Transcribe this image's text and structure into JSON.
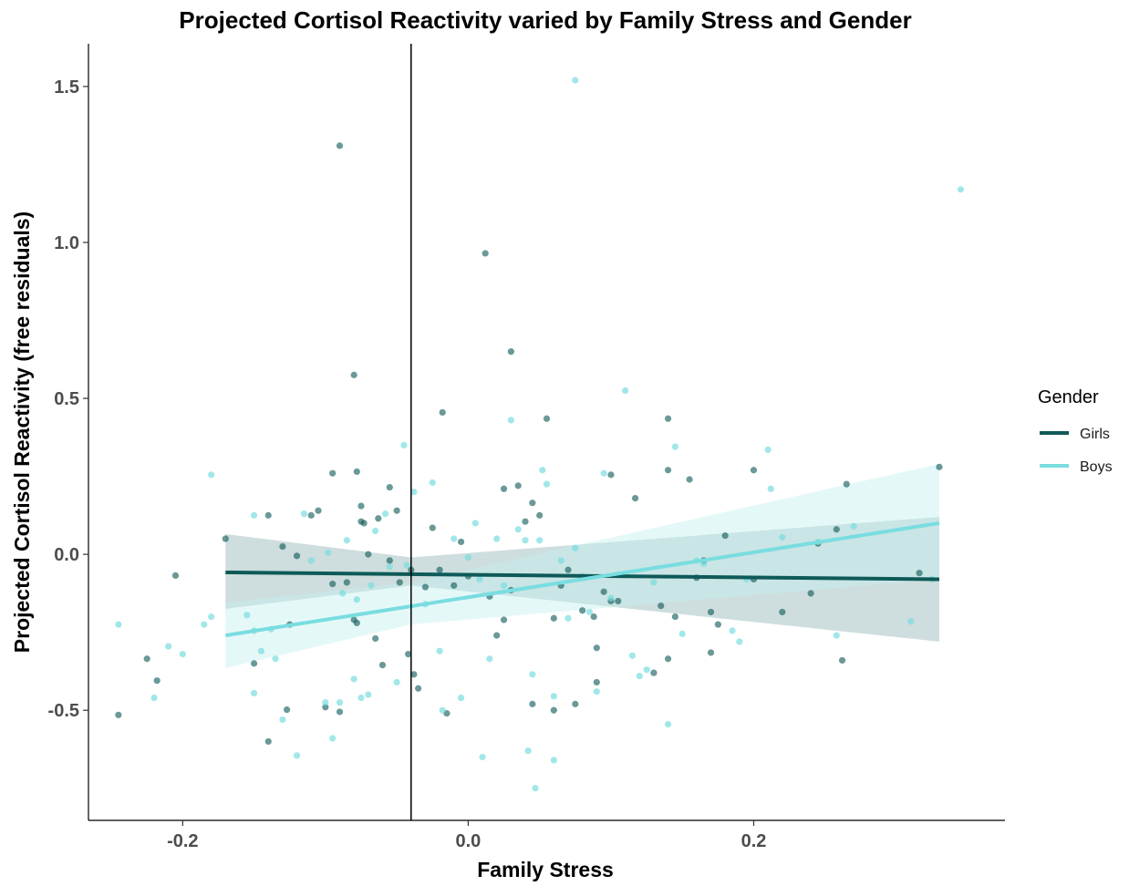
{
  "chart_data": {
    "type": "scatter",
    "title": "Projected Cortisol Reactivity varied by Family Stress and Gender",
    "xlabel": "Family Stress",
    "ylabel": "Projected Cortisol Reactivity (free residuals)",
    "xlim": [
      -0.266,
      0.376
    ],
    "ylim": [
      -0.853,
      1.637
    ],
    "x_ticks": [
      {
        "value": -0.2,
        "label": "-0.2"
      },
      {
        "value": 0.0,
        "label": "0.0"
      },
      {
        "value": 0.2,
        "label": "0.2"
      }
    ],
    "y_ticks": [
      {
        "value": -0.5,
        "label": "-0.5"
      },
      {
        "value": 0.0,
        "label": "0.0"
      },
      {
        "value": 0.5,
        "label": "0.5"
      },
      {
        "value": 1.0,
        "label": "1.0"
      },
      {
        "value": 1.5,
        "label": "1.5"
      }
    ],
    "grid": false,
    "vline_x": -0.04,
    "legend": {
      "title": "Gender",
      "position": "right"
    },
    "series": [
      {
        "name": "Girls",
        "color": "#0e5a58",
        "fit": {
          "x": [
            -0.17,
            0.33
          ],
          "y": [
            -0.058,
            -0.08
          ]
        },
        "band": {
          "x": [
            -0.17,
            -0.04,
            0.33
          ],
          "lower": [
            -0.175,
            -0.1,
            -0.28
          ],
          "upper": [
            0.065,
            -0.01,
            0.12
          ]
        },
        "points": [
          [
            -0.245,
            -0.515
          ],
          [
            -0.225,
            -0.335
          ],
          [
            -0.218,
            -0.405
          ],
          [
            -0.205,
            -0.068
          ],
          [
            -0.17,
            0.05
          ],
          [
            -0.15,
            -0.35
          ],
          [
            -0.14,
            0.125
          ],
          [
            -0.13,
            0.025
          ],
          [
            -0.125,
            -0.225
          ],
          [
            -0.127,
            -0.498
          ],
          [
            -0.12,
            -0.005
          ],
          [
            -0.14,
            -0.6
          ],
          [
            -0.11,
            0.125
          ],
          [
            -0.105,
            0.14
          ],
          [
            -0.1,
            -0.49
          ],
          [
            -0.095,
            0.26
          ],
          [
            -0.095,
            -0.095
          ],
          [
            -0.09,
            -0.505
          ],
          [
            -0.09,
            1.31
          ],
          [
            -0.085,
            -0.09
          ],
          [
            -0.08,
            0.575
          ],
          [
            -0.08,
            -0.21
          ],
          [
            -0.078,
            -0.22
          ],
          [
            -0.078,
            0.265
          ],
          [
            -0.075,
            0.155
          ],
          [
            -0.075,
            0.105
          ],
          [
            -0.073,
            0.1
          ],
          [
            -0.07,
            0.0
          ],
          [
            -0.065,
            -0.27
          ],
          [
            -0.063,
            0.115
          ],
          [
            -0.06,
            -0.355
          ],
          [
            -0.055,
            0.215
          ],
          [
            -0.055,
            -0.02
          ],
          [
            -0.05,
            0.14
          ],
          [
            -0.048,
            -0.09
          ],
          [
            -0.042,
            -0.32
          ],
          [
            -0.04,
            -0.05
          ],
          [
            -0.038,
            -0.385
          ],
          [
            -0.035,
            -0.43
          ],
          [
            -0.03,
            -0.105
          ],
          [
            -0.025,
            0.085
          ],
          [
            -0.02,
            -0.05
          ],
          [
            -0.018,
            0.455
          ],
          [
            -0.015,
            -0.51
          ],
          [
            -0.01,
            -0.1
          ],
          [
            -0.005,
            0.04
          ],
          [
            0.0,
            -0.07
          ],
          [
            0.012,
            0.965
          ],
          [
            0.015,
            -0.135
          ],
          [
            0.02,
            -0.26
          ],
          [
            0.025,
            -0.21
          ],
          [
            0.025,
            0.21
          ],
          [
            0.03,
            0.65
          ],
          [
            0.03,
            -0.115
          ],
          [
            0.035,
            0.22
          ],
          [
            0.04,
            0.105
          ],
          [
            0.045,
            0.165
          ],
          [
            0.05,
            0.125
          ],
          [
            0.055,
            0.435
          ],
          [
            0.045,
            -0.48
          ],
          [
            0.06,
            -0.205
          ],
          [
            0.06,
            -0.5
          ],
          [
            0.065,
            -0.1
          ],
          [
            0.07,
            -0.05
          ],
          [
            0.075,
            -0.48
          ],
          [
            0.08,
            -0.18
          ],
          [
            0.088,
            -0.2
          ],
          [
            0.09,
            -0.3
          ],
          [
            0.09,
            -0.41
          ],
          [
            0.095,
            -0.12
          ],
          [
            0.1,
            0.255
          ],
          [
            0.1,
            -0.15
          ],
          [
            0.105,
            -0.15
          ],
          [
            0.117,
            0.18
          ],
          [
            0.13,
            -0.38
          ],
          [
            0.135,
            -0.165
          ],
          [
            0.14,
            0.435
          ],
          [
            0.14,
            0.27
          ],
          [
            0.14,
            -0.335
          ],
          [
            0.145,
            -0.2
          ],
          [
            0.155,
            0.24
          ],
          [
            0.16,
            -0.075
          ],
          [
            0.165,
            -0.02
          ],
          [
            0.17,
            -0.315
          ],
          [
            0.17,
            -0.185
          ],
          [
            0.175,
            -0.225
          ],
          [
            0.18,
            0.06
          ],
          [
            0.2,
            0.27
          ],
          [
            0.2,
            -0.08
          ],
          [
            0.22,
            -0.185
          ],
          [
            0.24,
            -0.125
          ],
          [
            0.245,
            0.035
          ],
          [
            0.258,
            0.08
          ],
          [
            0.262,
            -0.34
          ],
          [
            0.265,
            0.225
          ],
          [
            0.316,
            -0.06
          ],
          [
            0.33,
            0.28
          ]
        ]
      },
      {
        "name": "Boys",
        "color": "#79dde0",
        "fit": {
          "x": [
            -0.17,
            0.33
          ],
          "y": [
            -0.26,
            0.1
          ]
        },
        "band": {
          "x": [
            -0.17,
            -0.04,
            0.33
          ],
          "lower": [
            -0.365,
            -0.225,
            -0.08
          ],
          "upper": [
            -0.155,
            -0.09,
            0.29
          ]
        },
        "points": [
          [
            -0.245,
            -0.225
          ],
          [
            -0.22,
            -0.46
          ],
          [
            -0.21,
            -0.295
          ],
          [
            -0.2,
            -0.32
          ],
          [
            -0.18,
            -0.2
          ],
          [
            -0.185,
            -0.225
          ],
          [
            -0.18,
            0.255
          ],
          [
            -0.155,
            -0.195
          ],
          [
            -0.15,
            0.125
          ],
          [
            -0.15,
            -0.245
          ],
          [
            -0.15,
            -0.445
          ],
          [
            -0.145,
            -0.31
          ],
          [
            -0.138,
            -0.24
          ],
          [
            -0.135,
            -0.335
          ],
          [
            -0.13,
            -0.53
          ],
          [
            -0.12,
            -0.645
          ],
          [
            -0.115,
            0.13
          ],
          [
            -0.11,
            -0.02
          ],
          [
            -0.1,
            -0.475
          ],
          [
            -0.098,
            0.005
          ],
          [
            -0.095,
            -0.59
          ],
          [
            -0.09,
            -0.475
          ],
          [
            -0.088,
            -0.125
          ],
          [
            -0.085,
            0.045
          ],
          [
            -0.08,
            -0.4
          ],
          [
            -0.078,
            -0.145
          ],
          [
            -0.075,
            -0.46
          ],
          [
            -0.07,
            -0.45
          ],
          [
            -0.068,
            -0.1
          ],
          [
            -0.065,
            0.075
          ],
          [
            -0.058,
            0.13
          ],
          [
            -0.055,
            -0.04
          ],
          [
            -0.05,
            -0.41
          ],
          [
            -0.045,
            0.35
          ],
          [
            -0.043,
            -0.035
          ],
          [
            -0.038,
            0.2
          ],
          [
            -0.03,
            -0.16
          ],
          [
            -0.025,
            0.23
          ],
          [
            -0.02,
            -0.31
          ],
          [
            -0.018,
            -0.5
          ],
          [
            -0.01,
            0.05
          ],
          [
            -0.005,
            -0.46
          ],
          [
            0.0,
            -0.01
          ],
          [
            0.005,
            0.1
          ],
          [
            0.008,
            -0.08
          ],
          [
            0.01,
            -0.65
          ],
          [
            0.015,
            -0.335
          ],
          [
            0.02,
            0.05
          ],
          [
            0.025,
            -0.1
          ],
          [
            0.03,
            0.43
          ],
          [
            0.035,
            0.08
          ],
          [
            0.04,
            0.045
          ],
          [
            0.042,
            -0.63
          ],
          [
            0.045,
            -0.385
          ],
          [
            0.047,
            -0.75
          ],
          [
            0.05,
            0.045
          ],
          [
            0.052,
            0.27
          ],
          [
            0.055,
            0.225
          ],
          [
            0.06,
            -0.455
          ],
          [
            0.06,
            -0.66
          ],
          [
            0.065,
            -0.02
          ],
          [
            0.07,
            -0.205
          ],
          [
            0.075,
            0.02
          ],
          [
            0.075,
            1.52
          ],
          [
            0.08,
            -0.07
          ],
          [
            0.085,
            -0.185
          ],
          [
            0.09,
            -0.44
          ],
          [
            0.095,
            0.26
          ],
          [
            0.1,
            -0.14
          ],
          [
            0.11,
            0.525
          ],
          [
            0.115,
            -0.325
          ],
          [
            0.12,
            -0.39
          ],
          [
            0.125,
            -0.37
          ],
          [
            0.13,
            -0.09
          ],
          [
            0.14,
            -0.545
          ],
          [
            0.145,
            0.345
          ],
          [
            0.15,
            -0.255
          ],
          [
            0.16,
            -0.02
          ],
          [
            0.165,
            -0.03
          ],
          [
            0.185,
            -0.245
          ],
          [
            0.19,
            -0.28
          ],
          [
            0.195,
            -0.08
          ],
          [
            0.21,
            0.335
          ],
          [
            0.212,
            0.21
          ],
          [
            0.22,
            0.055
          ],
          [
            0.245,
            0.04
          ],
          [
            0.258,
            -0.26
          ],
          [
            0.27,
            0.09
          ],
          [
            0.31,
            -0.215
          ],
          [
            0.325,
            -0.08
          ],
          [
            0.345,
            1.17
          ]
        ]
      }
    ]
  }
}
